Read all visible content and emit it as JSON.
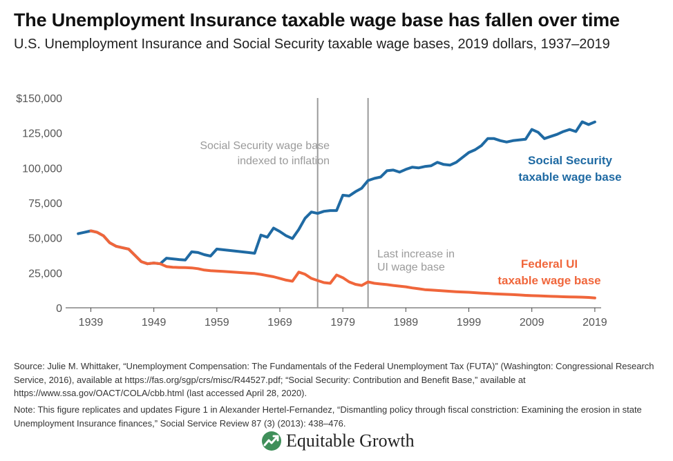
{
  "title": "The Unemployment Insurance taxable wage base has fallen over time",
  "subtitle": "U.S. Unemployment Insurance and Social Security taxable wage bases, 2019 dollars, 1937–2019",
  "source": "Source: Julie M. Whittaker, “Unemployment Compensation: The Fundamentals of the Federal Unemployment Tax (FUTA)” (Washington: Congressional Research Service, 2016), available at  https://fas.org/sgp/crs/misc/R44527.pdf; “Social Security: Contribution and Benefit Base,” available at https://www.ssa.gov/OACT/COLA/cbb.html (last accessed April 28, 2020).",
  "note": "Note: This figure replicates and updates Figure 1 in Alexander Hertel-Fernandez, “Dismantling policy through fiscal constriction: Examining the erosion in state Unemployment Insurance finances,” Social Service Review 87 (3) (2013): 438–476.",
  "logo": {
    "text": "Equitable Growth",
    "icon": "equitable-growth-logo-icon"
  },
  "colors": {
    "social_security": "#1f6aa3",
    "federal_ui": "#f0663b",
    "annotation": "#9a9a9a",
    "gridline": "#cccccc"
  },
  "chart_data": {
    "type": "line",
    "title": "The Unemployment Insurance taxable wage base has fallen over time",
    "xlabel": "",
    "ylabel": "",
    "xlim": [
      1935,
      2020
    ],
    "ylim": [
      0,
      150000
    ],
    "y_ticks": [
      0,
      25000,
      50000,
      75000,
      100000,
      125000,
      150000
    ],
    "y_tick_labels": [
      "0",
      "25,000",
      "50,000",
      "75,000",
      "100,000",
      "125,000",
      "$150,000"
    ],
    "x_ticks": [
      1939,
      1949,
      1959,
      1969,
      1979,
      1989,
      1999,
      2009,
      2019
    ],
    "x_tick_labels": [
      "1939",
      "1949",
      "1959",
      "1969",
      "1979",
      "1989",
      "1999",
      "2009",
      "2019"
    ],
    "grid": false,
    "series": [
      {
        "name": "Social Security taxable wage base",
        "color": "#1f6aa3",
        "label_lines": [
          "Social Security",
          "taxable wage base"
        ],
        "x": [
          1937,
          1938,
          1939,
          1940,
          1941,
          1942,
          1943,
          1944,
          1945,
          1946,
          1947,
          1948,
          1949,
          1950,
          1951,
          1952,
          1953,
          1954,
          1955,
          1956,
          1957,
          1958,
          1959,
          1960,
          1961,
          1962,
          1963,
          1964,
          1965,
          1966,
          1967,
          1968,
          1969,
          1970,
          1971,
          1972,
          1973,
          1974,
          1975,
          1976,
          1977,
          1978,
          1979,
          1980,
          1981,
          1982,
          1983,
          1984,
          1985,
          1986,
          1987,
          1988,
          1989,
          1990,
          1991,
          1992,
          1993,
          1994,
          1995,
          1996,
          1997,
          1998,
          1999,
          2000,
          2001,
          2002,
          2003,
          2004,
          2005,
          2006,
          2007,
          2008,
          2009,
          2010,
          2011,
          2012,
          2013,
          2014,
          2015,
          2016,
          2017,
          2018,
          2019
        ],
        "y": [
          53000,
          54000,
          55000,
          54000,
          51500,
          46500,
          44000,
          43000,
          42000,
          37500,
          33000,
          31500,
          32000,
          31500,
          35500,
          35000,
          34500,
          34200,
          40000,
          39500,
          38000,
          37000,
          42000,
          41500,
          41000,
          40500,
          40000,
          39500,
          39000,
          52000,
          50500,
          57000,
          54500,
          51500,
          49500,
          56000,
          64000,
          68500,
          67500,
          69000,
          69500,
          69500,
          80500,
          80000,
          83000,
          85500,
          91000,
          92500,
          93500,
          98000,
          98500,
          97000,
          99000,
          100500,
          100000,
          101000,
          101500,
          104000,
          102500,
          102000,
          104000,
          107500,
          111000,
          113000,
          116000,
          121000,
          121000,
          119500,
          118500,
          119500,
          120000,
          120500,
          127500,
          125500,
          121000,
          122500,
          124000,
          126000,
          127500,
          126000,
          133000,
          131000,
          132900
        ]
      },
      {
        "name": "Federal UI taxable wage base",
        "color": "#f0663b",
        "label_lines": [
          "Federal UI",
          "taxable wage base"
        ],
        "x": [
          1939,
          1940,
          1941,
          1942,
          1943,
          1944,
          1945,
          1946,
          1947,
          1948,
          1949,
          1950,
          1951,
          1952,
          1953,
          1954,
          1955,
          1956,
          1957,
          1958,
          1959,
          1960,
          1961,
          1962,
          1963,
          1964,
          1965,
          1966,
          1967,
          1968,
          1969,
          1970,
          1971,
          1972,
          1973,
          1974,
          1975,
          1976,
          1977,
          1978,
          1979,
          1980,
          1981,
          1982,
          1983,
          1984,
          1985,
          1986,
          1987,
          1988,
          1989,
          1990,
          1991,
          1992,
          1993,
          1994,
          1995,
          1996,
          1997,
          1998,
          1999,
          2000,
          2001,
          2002,
          2003,
          2004,
          2005,
          2006,
          2007,
          2008,
          2009,
          2010,
          2011,
          2012,
          2013,
          2014,
          2015,
          2016,
          2017,
          2018,
          2019
        ],
        "y": [
          55000,
          54000,
          51500,
          46500,
          44000,
          43000,
          42000,
          37500,
          33000,
          31500,
          32000,
          31500,
          29500,
          29000,
          28800,
          28700,
          28500,
          28000,
          27000,
          26500,
          26300,
          26000,
          25700,
          25400,
          25100,
          24800,
          24500,
          23900,
          23000,
          22200,
          21000,
          19800,
          19000,
          25500,
          24000,
          21000,
          19500,
          18000,
          17500,
          23500,
          21500,
          18500,
          16800,
          16000,
          18500,
          17500,
          17000,
          16600,
          16000,
          15500,
          15000,
          14200,
          13600,
          13000,
          12700,
          12400,
          12100,
          11800,
          11500,
          11300,
          11100,
          10800,
          10500,
          10300,
          10000,
          9800,
          9600,
          9400,
          9200,
          8900,
          8700,
          8600,
          8400,
          8200,
          8100,
          7900,
          7800,
          7700,
          7600,
          7400,
          7000
        ]
      }
    ],
    "vertical_markers": [
      {
        "x": 1975,
        "label_lines": [
          "Social Security wage base",
          "indexed to inflation"
        ]
      },
      {
        "x": 1983,
        "label_lines": [
          "Last increase in",
          "UI wage base"
        ]
      }
    ]
  }
}
